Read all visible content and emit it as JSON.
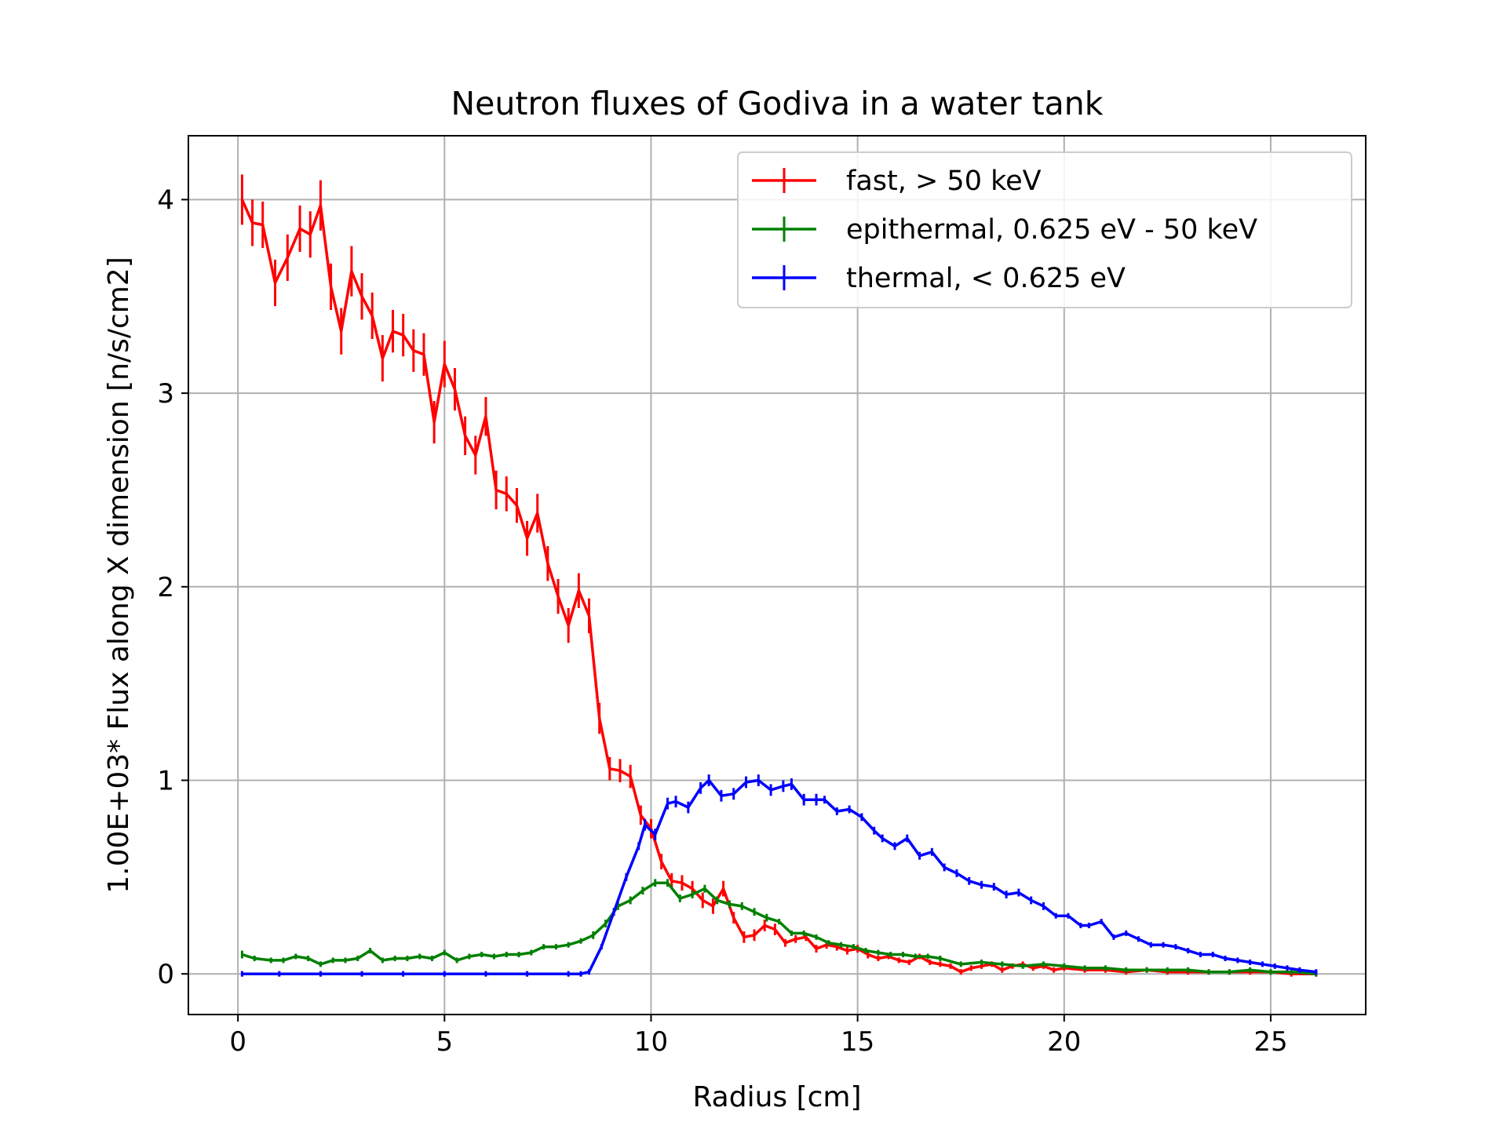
{
  "chart_data": {
    "type": "line",
    "title": "Neutron fluxes of Godiva in a water tank",
    "xlabel": "Radius [cm]",
    "ylabel": "1.00E+03* Flux along X dimension [n/s/cm2]",
    "xlim": [
      -1.2,
      27.3
    ],
    "ylim": [
      -0.21,
      4.33
    ],
    "xticks": [
      0,
      5,
      10,
      15,
      20,
      25
    ],
    "yticks": [
      0,
      1,
      2,
      3,
      4
    ],
    "grid": true,
    "legend_position": "top-right",
    "error_bars": true,
    "series": [
      {
        "name": "fast, > 50 keV",
        "color": "#ff0000",
        "x": [
          0.1,
          0.35,
          0.6,
          0.9,
          1.2,
          1.5,
          1.75,
          2.0,
          2.25,
          2.5,
          2.75,
          3.0,
          3.25,
          3.5,
          3.75,
          4.0,
          4.25,
          4.5,
          4.75,
          5.0,
          5.25,
          5.5,
          5.75,
          6.0,
          6.25,
          6.5,
          6.75,
          7.0,
          7.25,
          7.5,
          7.75,
          8.0,
          8.25,
          8.5,
          8.75,
          9.0,
          9.25,
          9.5,
          9.75,
          10.0,
          10.25,
          10.5,
          10.75,
          11.0,
          11.25,
          11.5,
          11.75,
          12.0,
          12.25,
          12.5,
          12.75,
          13.0,
          13.25,
          13.5,
          13.75,
          14.0,
          14.25,
          14.5,
          14.75,
          15.0,
          15.25,
          15.5,
          15.75,
          16.0,
          16.25,
          16.5,
          16.75,
          17.0,
          17.25,
          17.5,
          17.75,
          18.0,
          18.25,
          18.5,
          18.75,
          19.0,
          19.25,
          19.5,
          19.75,
          20.0,
          20.5,
          21.0,
          21.5,
          22.0,
          22.5,
          23.0,
          23.5,
          24.0,
          24.5,
          25.0,
          25.5,
          26.1
        ],
        "y": [
          4.0,
          3.88,
          3.87,
          3.57,
          3.7,
          3.85,
          3.82,
          3.97,
          3.55,
          3.32,
          3.63,
          3.5,
          3.4,
          3.18,
          3.32,
          3.3,
          3.22,
          3.2,
          2.85,
          3.15,
          3.02,
          2.78,
          2.68,
          2.88,
          2.5,
          2.48,
          2.42,
          2.25,
          2.38,
          2.12,
          1.95,
          1.8,
          1.98,
          1.85,
          1.32,
          1.06,
          1.05,
          1.02,
          0.82,
          0.75,
          0.58,
          0.48,
          0.47,
          0.44,
          0.38,
          0.35,
          0.44,
          0.29,
          0.19,
          0.2,
          0.25,
          0.23,
          0.16,
          0.18,
          0.19,
          0.13,
          0.15,
          0.14,
          0.12,
          0.13,
          0.1,
          0.08,
          0.09,
          0.07,
          0.06,
          0.09,
          0.06,
          0.05,
          0.04,
          0.01,
          0.03,
          0.04,
          0.05,
          0.02,
          0.04,
          0.05,
          0.03,
          0.04,
          0.02,
          0.03,
          0.02,
          0.02,
          0.01,
          0.02,
          0.01,
          0.01,
          0.01,
          0.01,
          0.01,
          0.01,
          0.0,
          0.0
        ],
        "yerr": [
          0.13,
          0.12,
          0.12,
          0.12,
          0.12,
          0.12,
          0.12,
          0.13,
          0.12,
          0.12,
          0.13,
          0.12,
          0.12,
          0.12,
          0.11,
          0.11,
          0.11,
          0.11,
          0.11,
          0.12,
          0.11,
          0.1,
          0.1,
          0.1,
          0.1,
          0.09,
          0.09,
          0.09,
          0.1,
          0.09,
          0.09,
          0.09,
          0.09,
          0.09,
          0.08,
          0.06,
          0.06,
          0.06,
          0.05,
          0.05,
          0.04,
          0.04,
          0.04,
          0.04,
          0.04,
          0.04,
          0.04,
          0.03,
          0.03,
          0.03,
          0.03,
          0.03,
          0.02,
          0.02,
          0.02,
          0.02,
          0.02,
          0.02,
          0.02,
          0.02,
          0.02,
          0.01,
          0.01,
          0.01,
          0.01,
          0.01,
          0.01,
          0.01,
          0.01,
          0.01,
          0.01,
          0.01,
          0.01,
          0.01,
          0.01,
          0.01,
          0.01,
          0.01,
          0.01,
          0.01,
          0.01,
          0.01,
          0.01,
          0.01,
          0.01,
          0.01,
          0.01,
          0.01,
          0.01,
          0.01,
          0.01,
          0.01
        ]
      },
      {
        "name": "epithermal, 0.625 eV - 50 keV",
        "color": "#008000",
        "x": [
          0.1,
          0.4,
          0.8,
          1.1,
          1.4,
          1.7,
          2.0,
          2.3,
          2.6,
          2.9,
          3.2,
          3.5,
          3.8,
          4.1,
          4.4,
          4.7,
          5.0,
          5.3,
          5.6,
          5.9,
          6.2,
          6.5,
          6.8,
          7.1,
          7.4,
          7.7,
          8.0,
          8.3,
          8.6,
          8.9,
          9.2,
          9.5,
          9.8,
          10.1,
          10.4,
          10.7,
          11.0,
          11.3,
          11.6,
          11.9,
          12.2,
          12.5,
          12.8,
          13.1,
          13.4,
          13.7,
          14.0,
          14.3,
          14.6,
          14.9,
          15.2,
          15.5,
          15.8,
          16.1,
          16.4,
          16.7,
          17.0,
          17.5,
          18.0,
          18.5,
          19.0,
          19.5,
          20.0,
          20.5,
          21.0,
          21.5,
          22.0,
          22.5,
          23.0,
          23.5,
          24.0,
          24.5,
          25.0,
          25.5,
          26.1
        ],
        "y": [
          0.1,
          0.08,
          0.07,
          0.07,
          0.09,
          0.08,
          0.05,
          0.07,
          0.07,
          0.08,
          0.12,
          0.07,
          0.08,
          0.08,
          0.09,
          0.08,
          0.11,
          0.07,
          0.09,
          0.1,
          0.09,
          0.1,
          0.1,
          0.11,
          0.14,
          0.14,
          0.15,
          0.17,
          0.2,
          0.26,
          0.35,
          0.38,
          0.43,
          0.47,
          0.47,
          0.39,
          0.41,
          0.44,
          0.38,
          0.36,
          0.35,
          0.32,
          0.29,
          0.27,
          0.21,
          0.21,
          0.19,
          0.16,
          0.15,
          0.14,
          0.12,
          0.11,
          0.1,
          0.1,
          0.09,
          0.09,
          0.08,
          0.05,
          0.06,
          0.05,
          0.04,
          0.05,
          0.04,
          0.03,
          0.03,
          0.02,
          0.02,
          0.02,
          0.02,
          0.01,
          0.01,
          0.02,
          0.01,
          0.01,
          0.0
        ],
        "yerr": [
          0.02,
          0.01,
          0.01,
          0.01,
          0.01,
          0.01,
          0.01,
          0.01,
          0.01,
          0.01,
          0.01,
          0.01,
          0.01,
          0.01,
          0.01,
          0.01,
          0.01,
          0.01,
          0.01,
          0.01,
          0.01,
          0.01,
          0.01,
          0.01,
          0.01,
          0.01,
          0.01,
          0.01,
          0.02,
          0.02,
          0.02,
          0.02,
          0.02,
          0.02,
          0.02,
          0.02,
          0.02,
          0.02,
          0.02,
          0.02,
          0.02,
          0.02,
          0.02,
          0.01,
          0.01,
          0.01,
          0.01,
          0.01,
          0.01,
          0.01,
          0.01,
          0.01,
          0.01,
          0.01,
          0.01,
          0.01,
          0.01,
          0.01,
          0.01,
          0.01,
          0.01,
          0.01,
          0.01,
          0.01,
          0.01,
          0.01,
          0.01,
          0.01,
          0.01,
          0.01,
          0.01,
          0.01,
          0.01,
          0.01,
          0.01
        ]
      },
      {
        "name": "thermal, < 0.625 eV",
        "color": "#0000ff",
        "x": [
          0.1,
          1.0,
          2.0,
          3.0,
          4.0,
          5.0,
          6.0,
          7.0,
          8.0,
          8.3,
          8.5,
          8.8,
          9.1,
          9.4,
          9.7,
          9.85,
          10.1,
          10.4,
          10.6,
          10.9,
          11.2,
          11.4,
          11.7,
          12.0,
          12.3,
          12.6,
          12.9,
          13.2,
          13.4,
          13.7,
          14.0,
          14.2,
          14.5,
          14.8,
          15.1,
          15.4,
          15.6,
          15.9,
          16.2,
          16.5,
          16.8,
          17.1,
          17.4,
          17.7,
          18.0,
          18.3,
          18.6,
          18.9,
          19.2,
          19.5,
          19.8,
          20.1,
          20.4,
          20.6,
          20.9,
          21.2,
          21.5,
          21.8,
          22.1,
          22.4,
          22.7,
          23.0,
          23.3,
          23.6,
          23.9,
          24.2,
          24.5,
          24.8,
          25.1,
          25.4,
          25.7,
          26.1
        ],
        "y": [
          0.0,
          0.0,
          0.0,
          0.0,
          0.0,
          0.0,
          0.0,
          0.0,
          0.0,
          0.0,
          0.01,
          0.14,
          0.32,
          0.5,
          0.66,
          0.77,
          0.72,
          0.88,
          0.89,
          0.86,
          0.96,
          1.0,
          0.92,
          0.93,
          0.99,
          1.0,
          0.95,
          0.97,
          0.98,
          0.9,
          0.9,
          0.9,
          0.84,
          0.85,
          0.81,
          0.74,
          0.7,
          0.66,
          0.7,
          0.61,
          0.63,
          0.55,
          0.52,
          0.48,
          0.46,
          0.45,
          0.41,
          0.42,
          0.38,
          0.35,
          0.3,
          0.3,
          0.25,
          0.25,
          0.27,
          0.19,
          0.21,
          0.18,
          0.15,
          0.15,
          0.14,
          0.12,
          0.1,
          0.1,
          0.08,
          0.07,
          0.06,
          0.05,
          0.04,
          0.03,
          0.02,
          0.01
        ],
        "yerr": [
          0.0,
          0.0,
          0.0,
          0.0,
          0.0,
          0.0,
          0.0,
          0.0,
          0.0,
          0.0,
          0.0,
          0.01,
          0.02,
          0.02,
          0.02,
          0.03,
          0.03,
          0.03,
          0.03,
          0.03,
          0.03,
          0.03,
          0.03,
          0.03,
          0.03,
          0.03,
          0.03,
          0.03,
          0.03,
          0.03,
          0.03,
          0.02,
          0.02,
          0.02,
          0.02,
          0.02,
          0.02,
          0.02,
          0.02,
          0.02,
          0.02,
          0.02,
          0.02,
          0.02,
          0.02,
          0.02,
          0.02,
          0.02,
          0.02,
          0.02,
          0.01,
          0.01,
          0.01,
          0.01,
          0.01,
          0.01,
          0.01,
          0.01,
          0.01,
          0.01,
          0.01,
          0.01,
          0.01,
          0.01,
          0.01,
          0.01,
          0.01,
          0.01,
          0.01,
          0.01,
          0.01,
          0.0
        ]
      }
    ]
  }
}
